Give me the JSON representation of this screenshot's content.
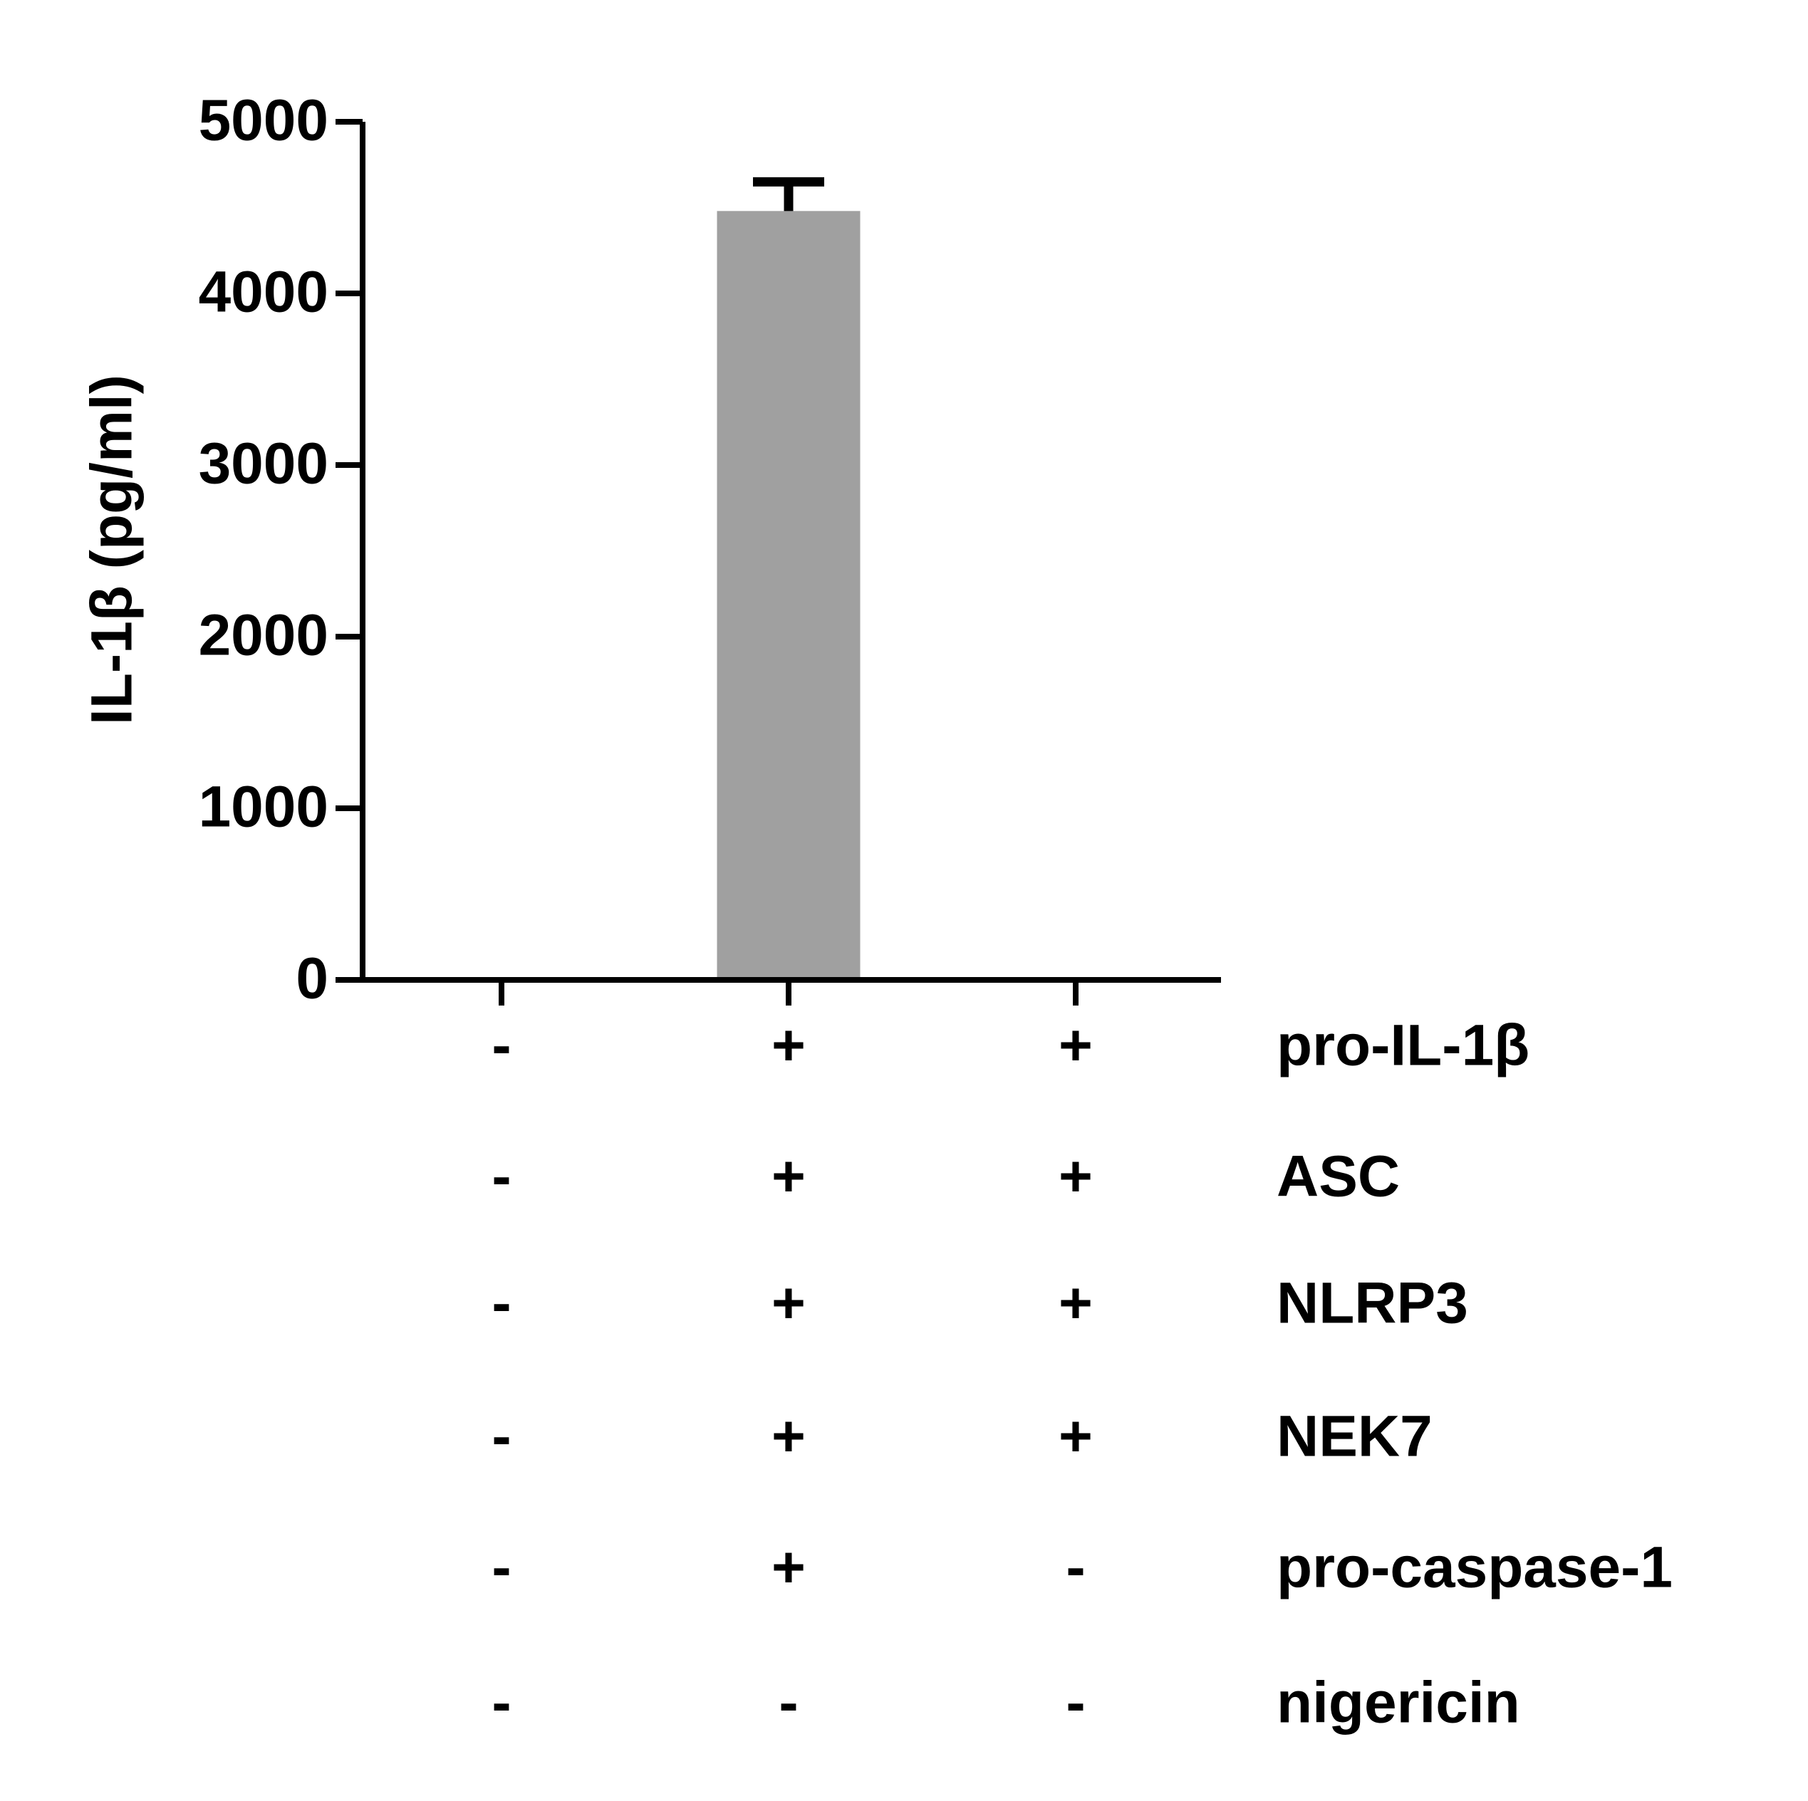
{
  "chart_data": {
    "type": "bar",
    "y_label": "IL-1β (pg/ml)",
    "categories": [
      null,
      null,
      null
    ],
    "values": [
      0,
      4480,
      0
    ],
    "errors": [
      null,
      170,
      null
    ],
    "color": "#a0a0a0",
    "ylim": [
      0,
      5000
    ],
    "yticks": [
      0,
      1000,
      2000,
      3000,
      4000,
      5000
    ],
    "conditions": [
      {
        "name": "pro-IL-1β",
        "signs": [
          "-",
          "+",
          "+"
        ]
      },
      {
        "name": "ASC",
        "signs": [
          "-",
          "+",
          "+"
        ]
      },
      {
        "name": "NLRP3",
        "signs": [
          "-",
          "+",
          "+"
        ]
      },
      {
        "name": "NEK7",
        "signs": [
          "-",
          "+",
          "+"
        ]
      },
      {
        "name": "pro-caspase-1",
        "signs": [
          "-",
          "+",
          "-"
        ]
      },
      {
        "name": "nigericin",
        "signs": [
          "-",
          "-",
          "-"
        ]
      }
    ]
  }
}
